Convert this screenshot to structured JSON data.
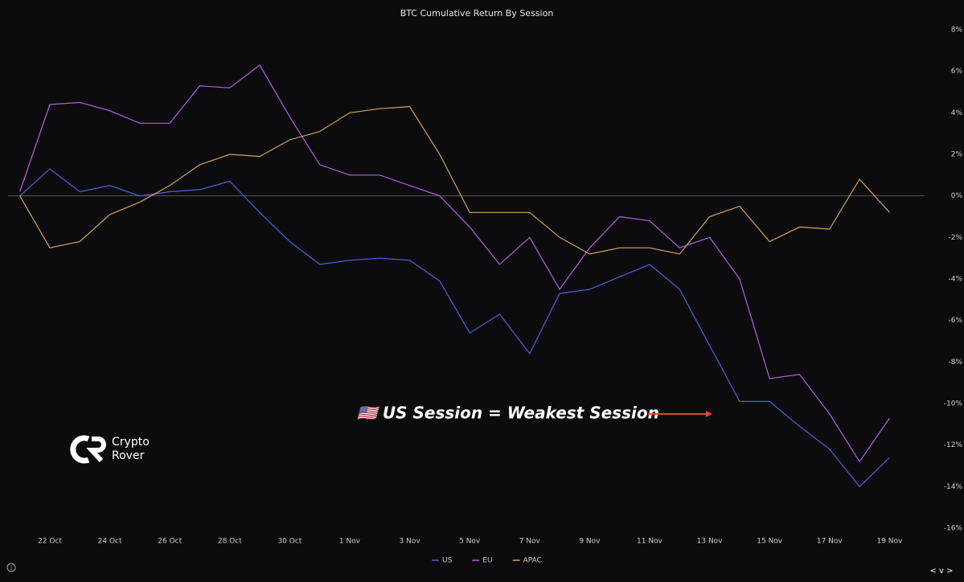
{
  "chart_data": {
    "type": "line",
    "title": "BTC Cumulative Return By Session",
    "x": [
      "21 Oct",
      "22 Oct",
      "23 Oct",
      "24 Oct",
      "25 Oct",
      "26 Oct",
      "27 Oct",
      "28 Oct",
      "29 Oct",
      "30 Oct",
      "31 Oct",
      "1 Nov",
      "2 Nov",
      "3 Nov",
      "4 Nov",
      "5 Nov",
      "6 Nov",
      "7 Nov",
      "8 Nov",
      "9 Nov",
      "10 Nov",
      "11 Nov",
      "12 Nov",
      "13 Nov",
      "14 Nov",
      "15 Nov",
      "16 Nov",
      "17 Nov",
      "18 Nov",
      "19 Nov"
    ],
    "xticks": [
      "22 Oct",
      "24 Oct",
      "26 Oct",
      "28 Oct",
      "30 Oct",
      "1 Nov",
      "3 Nov",
      "5 Nov",
      "7 Nov",
      "9 Nov",
      "11 Nov",
      "13 Nov",
      "15 Nov",
      "17 Nov",
      "19 Nov"
    ],
    "series": [
      {
        "name": "US",
        "color": "#4d63dc",
        "values": [
          0,
          1.3,
          0.2,
          0.5,
          0,
          0.2,
          0.3,
          0.7,
          -0.8,
          -2.2,
          -3.3,
          -3.1,
          -3.0,
          -3.1,
          -4.1,
          -6.6,
          -5.7,
          -7.6,
          -4.7,
          -4.5,
          -3.9,
          -3.3,
          -4.5,
          -7.2,
          -9.9,
          -9.9,
          -11.1,
          -12.2,
          -14.0,
          -12.6
        ]
      },
      {
        "name": "EU",
        "color": "#b55fe2",
        "values": [
          0.2,
          4.4,
          4.5,
          4.1,
          3.5,
          3.5,
          5.3,
          5.2,
          6.3,
          3.8,
          1.5,
          1.0,
          1.0,
          0.5,
          0.0,
          -1.5,
          -3.3,
          -2.0,
          -4.5,
          -2.5,
          -1.0,
          -1.2,
          -2.5,
          -2.0,
          -4.0,
          -8.8,
          -8.6,
          -10.5,
          -12.8,
          -10.7
        ]
      },
      {
        "name": "APAC",
        "color": "#d6a35c",
        "values": [
          0,
          -2.5,
          -2.2,
          -0.9,
          -0.3,
          0.5,
          1.5,
          2.0,
          1.9,
          2.7,
          3.1,
          4.0,
          4.2,
          4.3,
          2.0,
          -0.8,
          -0.8,
          -0.8,
          -2.0,
          -2.8,
          -2.5,
          -2.5,
          -2.8,
          -1.0,
          -0.5,
          -2.2,
          -1.5,
          -1.6,
          0.8,
          -0.8
        ]
      }
    ],
    "ylim": [
      -16,
      8
    ],
    "yticks": [
      {
        "value": -16,
        "label": "-16%"
      },
      {
        "value": -14,
        "label": "-14%"
      },
      {
        "value": -12,
        "label": "-12%"
      },
      {
        "value": -10,
        "label": "-10%"
      },
      {
        "value": -8,
        "label": "-8%"
      },
      {
        "value": -6,
        "label": "-6%"
      },
      {
        "value": -4,
        "label": "-4%"
      },
      {
        "value": -2,
        "label": "-2%"
      },
      {
        "value": 0,
        "label": "0%"
      },
      {
        "value": 2,
        "label": "2%"
      },
      {
        "value": 4,
        "label": "4%"
      },
      {
        "value": 6,
        "label": "6%"
      },
      {
        "value": 8,
        "label": "8%"
      }
    ],
    "zero_line": true,
    "legend": "bottom",
    "annotation": "🇺🇸 US Session = Weakest Session",
    "logo": [
      "Crypto",
      "Rover"
    ],
    "controls": "< v >"
  }
}
